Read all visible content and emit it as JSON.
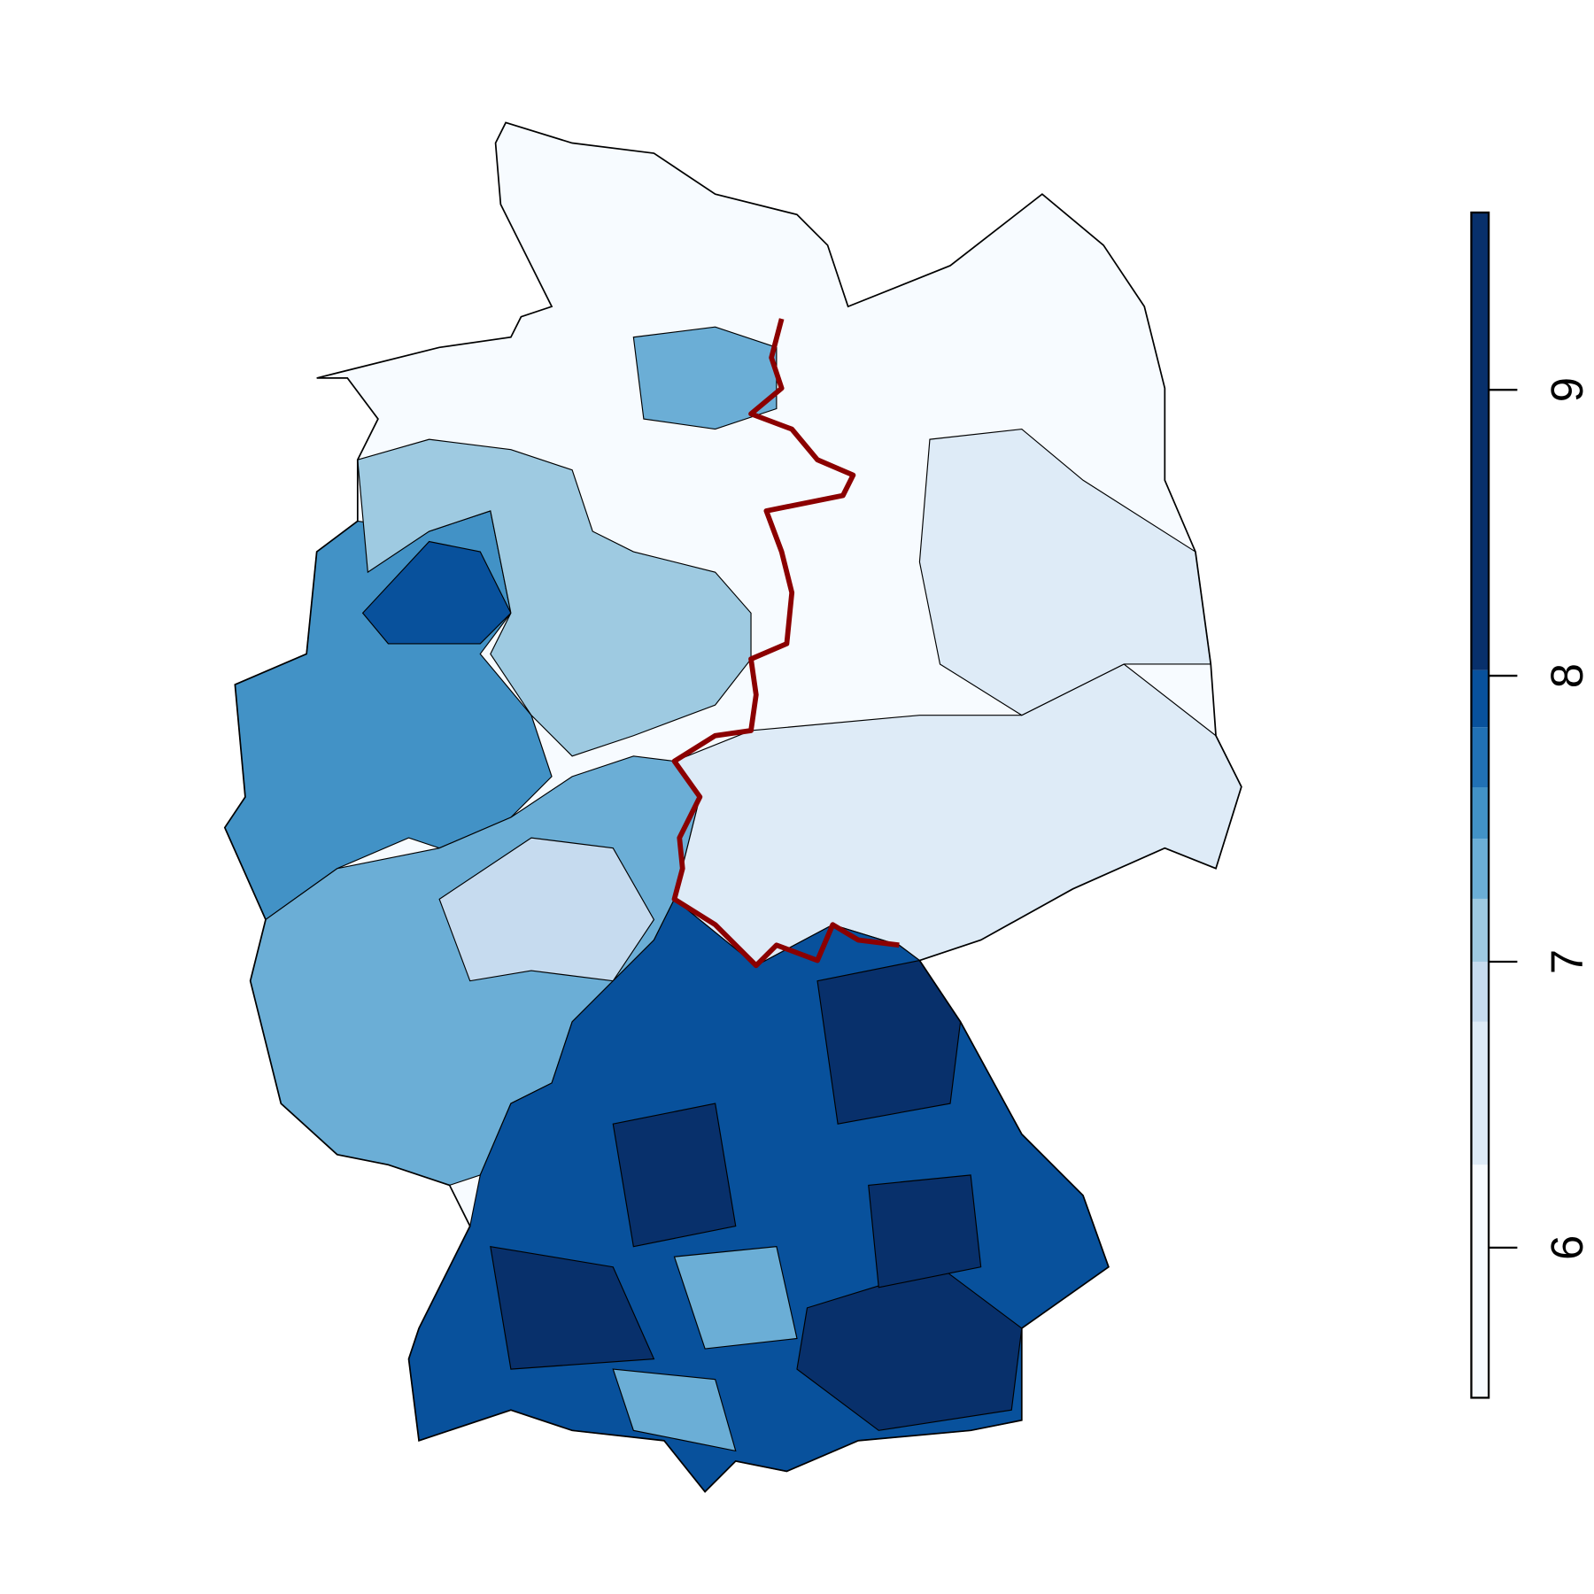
{
  "chart_data": {
    "type": "choropleth",
    "colorbar": {
      "lim": [
        5.475,
        9.62
      ],
      "ticks": [
        6,
        7,
        8,
        9
      ],
      "breaks": [
        5.475,
        6.29,
        6.79,
        7.0,
        7.22,
        7.43,
        7.61,
        7.82,
        8.02,
        9.62
      ],
      "colors": [
        "#f7fbff",
        "#deebf7",
        "#c6dbef",
        "#9ecae1",
        "#6baed6",
        "#4292c6",
        "#2171b5",
        "#08519c",
        "#08306b"
      ]
    },
    "border_color": "#8b0000"
  }
}
